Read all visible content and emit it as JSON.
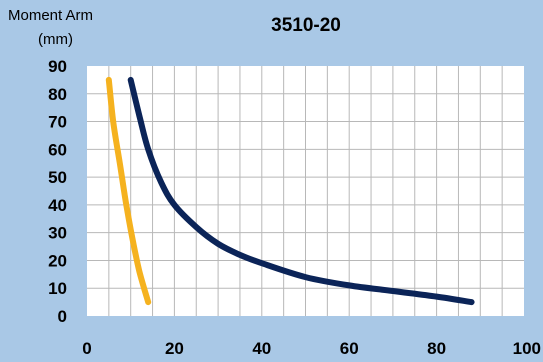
{
  "chart_data": {
    "type": "line",
    "title": "3510-20",
    "ylabel_line1": "Moment Arm",
    "ylabel_line2": "(mm)",
    "xlabel": "",
    "xlim": [
      0,
      100
    ],
    "ylim": [
      0,
      90
    ],
    "xticks": [
      0,
      20,
      40,
      60,
      80,
      100
    ],
    "yticks": [
      0,
      10,
      20,
      30,
      40,
      50,
      60,
      70,
      80,
      90
    ],
    "grid": true,
    "series": [
      {
        "color": "#f5b21f",
        "x": [
          5,
          6,
          7.5,
          9,
          10.5,
          12,
          14
        ],
        "y": [
          85,
          70,
          55,
          40,
          27,
          16,
          5
        ]
      },
      {
        "color": "#0b2458",
        "x": [
          10,
          12,
          14,
          17,
          20,
          25,
          30,
          35,
          40,
          50,
          60,
          70,
          80,
          88
        ],
        "y": [
          85,
          72,
          60,
          48,
          40,
          32,
          26,
          22,
          19,
          14,
          11,
          9,
          7,
          5
        ]
      }
    ]
  }
}
